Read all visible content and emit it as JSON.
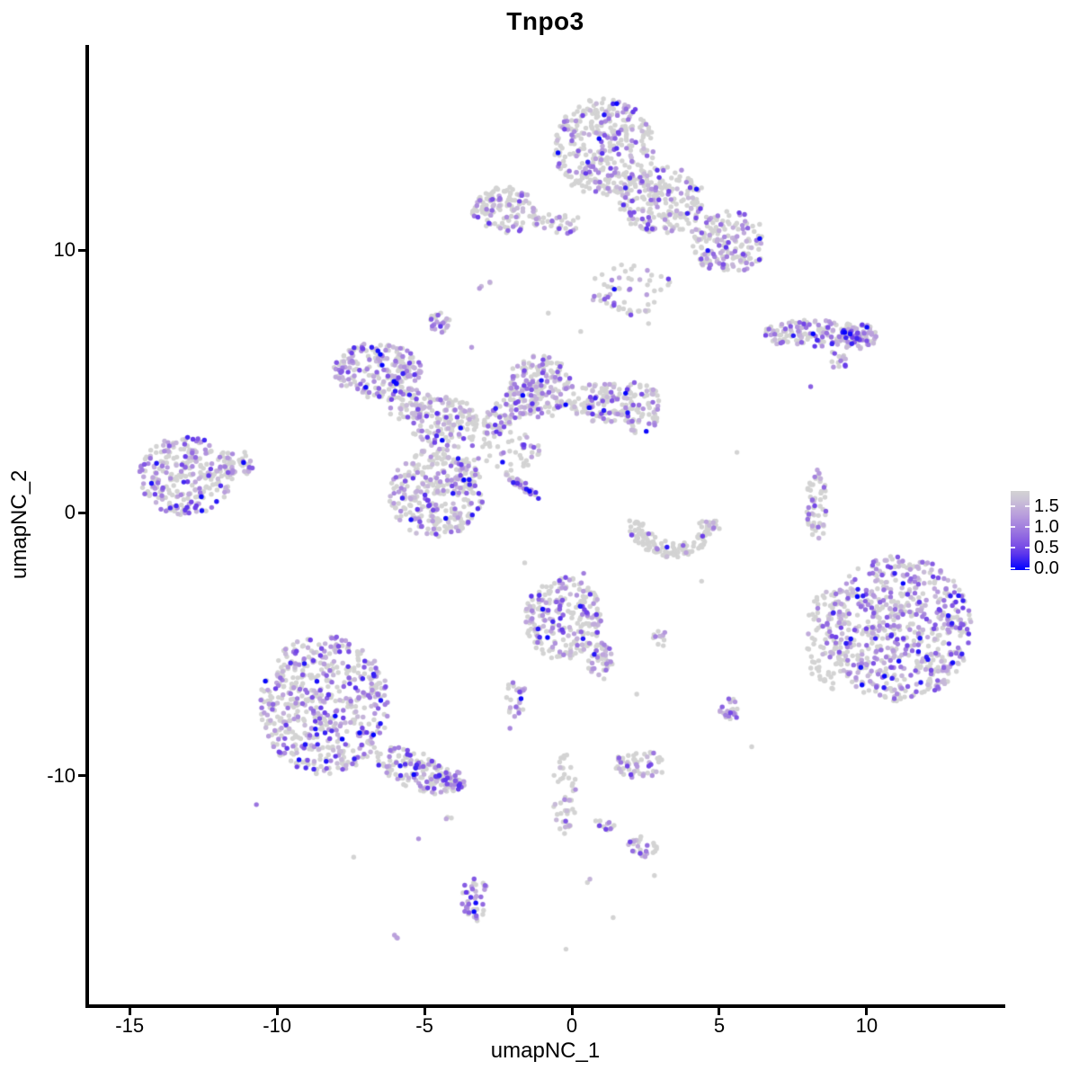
{
  "title": "Tnpo3",
  "axes": {
    "x": {
      "label": "umapNC_1",
      "ticks": [
        -15,
        -10,
        -5,
        0,
        5,
        10
      ],
      "range": [
        -16.5,
        14.7
      ]
    },
    "y": {
      "label": "umapNC_2",
      "ticks": [
        -10,
        0,
        10
      ],
      "range": [
        -18.7,
        17.8
      ]
    }
  },
  "legend": {
    "ticks": [
      0.0,
      0.5,
      1.0,
      1.5
    ],
    "range": [
      -0.05,
      1.87
    ],
    "low_color": "#D3D3D3",
    "high_color": "#0000FF"
  },
  "chart_data": {
    "type": "scatter",
    "title": "Tnpo3",
    "xlabel": "umapNC_1",
    "ylabel": "umapNC_2",
    "xlim": [
      -16.5,
      14.7
    ],
    "ylim": [
      -18.7,
      17.8
    ],
    "grid": false,
    "legend_position": "right",
    "point_radius_px": 2.7,
    "color_scale": {
      "type": "gradient",
      "low": "#D3D3D3",
      "high": "#0000FF",
      "stops": [
        "#D3D3D3",
        "#BDA4DC",
        "#9A74DF",
        "#6F41E8",
        "#0000FF"
      ],
      "value_range": [
        0.0,
        1.87
      ],
      "legend_ticks": [
        0.0,
        0.5,
        1.0,
        1.5
      ]
    },
    "clusters": [
      {
        "name": "top-main-upper",
        "x": 1.1,
        "y": 13.9,
        "rx": 1.7,
        "ry": 1.9,
        "n": 340,
        "frac_expressing": 0.35
      },
      {
        "name": "top-main-mid",
        "x": 3.0,
        "y": 11.9,
        "rx": 1.5,
        "ry": 1.3,
        "n": 220,
        "frac_expressing": 0.32
      },
      {
        "name": "top-main-lower-right",
        "x": 5.3,
        "y": 10.3,
        "rx": 1.3,
        "ry": 1.2,
        "n": 170,
        "frac_expressing": 0.38
      },
      {
        "name": "top-connector",
        "x": 2.0,
        "y": 8.5,
        "rx": 1.4,
        "ry": 1.0,
        "n": 60,
        "frac_expressing": 0.3
      },
      {
        "name": "top-left-small",
        "x": -2.3,
        "y": 11.5,
        "rx": 1.1,
        "ry": 0.9,
        "n": 120,
        "frac_expressing": 0.35
      },
      {
        "name": "top-left-band",
        "x": -0.5,
        "y": 11.0,
        "rx": 0.9,
        "ry": 0.4,
        "n": 35,
        "frac_expressing": 0.3
      },
      {
        "name": "tiny-pair-top",
        "x": -2.9,
        "y": 8.6,
        "rx": 0.3,
        "ry": 0.2,
        "n": 4,
        "frac_expressing": 0.5
      },
      {
        "name": "right-wing",
        "x": 8.2,
        "y": 6.8,
        "rx": 1.7,
        "ry": 0.55,
        "n": 130,
        "frac_expressing": 0.45
      },
      {
        "name": "right-wing-dense",
        "x": 9.7,
        "y": 6.7,
        "rx": 0.7,
        "ry": 0.5,
        "n": 70,
        "frac_expressing": 0.72
      },
      {
        "name": "right-wing-streak",
        "x": 9.0,
        "y": 5.8,
        "rx": 0.4,
        "ry": 0.3,
        "n": 14,
        "frac_expressing": 0.5,
        "rot": -40
      },
      {
        "name": "tiny-blob-mid-top",
        "x": -4.5,
        "y": 7.3,
        "rx": 0.35,
        "ry": 0.45,
        "n": 26,
        "frac_expressing": 0.6
      },
      {
        "name": "mid-left",
        "x": -6.6,
        "y": 5.4,
        "rx": 1.5,
        "ry": 1.1,
        "n": 210,
        "frac_expressing": 0.5
      },
      {
        "name": "mid-left-tail",
        "x": -5.5,
        "y": 4.1,
        "rx": 0.8,
        "ry": 0.6,
        "n": 60,
        "frac_expressing": 0.45
      },
      {
        "name": "central-upper",
        "x": -4.3,
        "y": 3.4,
        "rx": 1.2,
        "ry": 1.0,
        "n": 140,
        "frac_expressing": 0.4
      },
      {
        "name": "central-main",
        "x": -4.6,
        "y": 0.75,
        "rx": 1.6,
        "ry": 1.7,
        "n": 330,
        "frac_expressing": 0.38
      },
      {
        "name": "central-arm",
        "x": -2.0,
        "y": 4.0,
        "rx": 1.4,
        "ry": 0.5,
        "n": 90,
        "frac_expressing": 0.4,
        "rot": 40
      },
      {
        "name": "central-right",
        "x": -1.1,
        "y": 4.8,
        "rx": 1.2,
        "ry": 1.2,
        "n": 170,
        "frac_expressing": 0.42
      },
      {
        "name": "central-right-arm",
        "x": 1.1,
        "y": 4.2,
        "rx": 1.2,
        "ry": 0.75,
        "n": 110,
        "frac_expressing": 0.4
      },
      {
        "name": "central-right-lobe",
        "x": 2.3,
        "y": 4.0,
        "rx": 0.7,
        "ry": 1.0,
        "n": 80,
        "frac_expressing": 0.45
      },
      {
        "name": "central-sparse",
        "x": -2.3,
        "y": 2.4,
        "rx": 1.2,
        "ry": 0.8,
        "n": 50,
        "frac_expressing": 0.25
      },
      {
        "name": "diagonal-streak",
        "x": -1.7,
        "y": 1.05,
        "rx": 0.8,
        "ry": 0.15,
        "n": 40,
        "frac_expressing": 0.65,
        "rot": -40
      },
      {
        "name": "far-left",
        "x": -13.1,
        "y": 1.4,
        "rx": 1.6,
        "ry": 1.5,
        "n": 260,
        "frac_expressing": 0.5
      },
      {
        "name": "far-left-tail",
        "x": -11.4,
        "y": 1.9,
        "rx": 0.7,
        "ry": 0.5,
        "n": 40,
        "frac_expressing": 0.4
      },
      {
        "name": "mid-crescent",
        "x": 3.4,
        "y": -0.3,
        "rx": 1.5,
        "ry": 1.4,
        "n": 130,
        "frac_expressing": 0.15,
        "shape": "arc"
      },
      {
        "name": "right-thin-arc",
        "x": 8.3,
        "y": 0.25,
        "rx": 0.35,
        "ry": 1.4,
        "n": 55,
        "frac_expressing": 0.35
      },
      {
        "name": "right-big",
        "x": 11.1,
        "y": -4.4,
        "rx": 2.45,
        "ry": 2.8,
        "n": 650,
        "frac_expressing": 0.55
      },
      {
        "name": "right-big-left-edge",
        "x": 8.7,
        "y": -4.8,
        "rx": 0.75,
        "ry": 2.0,
        "n": 90,
        "frac_expressing": 0.2
      },
      {
        "name": "bottom-left-big",
        "x": -8.4,
        "y": -7.3,
        "rx": 2.2,
        "ry": 2.65,
        "n": 560,
        "frac_expressing": 0.45
      },
      {
        "name": "bottom-left-tail",
        "x": -5.3,
        "y": -9.8,
        "rx": 1.5,
        "ry": 0.7,
        "n": 130,
        "frac_expressing": 0.45,
        "rot": -26
      },
      {
        "name": "bottom-left-tail-end",
        "x": -4.1,
        "y": -10.2,
        "rx": 0.5,
        "ry": 0.4,
        "n": 45,
        "frac_expressing": 0.7
      },
      {
        "name": "tail-pair",
        "x": -4.0,
        "y": -11.6,
        "rx": 0.3,
        "ry": 0.15,
        "n": 3,
        "frac_expressing": 0.4
      },
      {
        "name": "mid-bottom",
        "x": -0.3,
        "y": -4.0,
        "rx": 1.3,
        "ry": 1.6,
        "n": 240,
        "frac_expressing": 0.42
      },
      {
        "name": "mid-bottom-tail",
        "x": 1.0,
        "y": -5.7,
        "rx": 0.45,
        "ry": 0.8,
        "n": 45,
        "frac_expressing": 0.55
      },
      {
        "name": "mid-bottom-chain",
        "x": -1.9,
        "y": -7.1,
        "rx": 0.4,
        "ry": 0.8,
        "n": 25,
        "frac_expressing": 0.45
      },
      {
        "name": "tiny-mid",
        "x": 3.0,
        "y": -4.8,
        "rx": 0.35,
        "ry": 0.3,
        "n": 12,
        "frac_expressing": 0.3
      },
      {
        "name": "small-purple",
        "x": 5.3,
        "y": -7.5,
        "rx": 0.35,
        "ry": 0.5,
        "n": 22,
        "frac_expressing": 0.65
      },
      {
        "name": "small-lower-1",
        "x": 2.3,
        "y": -9.6,
        "rx": 0.9,
        "ry": 0.55,
        "n": 55,
        "frac_expressing": 0.4
      },
      {
        "name": "small-lower-2",
        "x": 2.4,
        "y": -12.7,
        "rx": 0.5,
        "ry": 0.4,
        "n": 28,
        "frac_expressing": 0.4
      },
      {
        "name": "vertical-chain",
        "x": -0.25,
        "y": -10.7,
        "rx": 0.4,
        "ry": 1.55,
        "n": 48,
        "frac_expressing": 0.3
      },
      {
        "name": "chain-streak",
        "x": 1.0,
        "y": -11.9,
        "rx": 0.45,
        "ry": 0.2,
        "n": 12,
        "frac_expressing": 0.4
      },
      {
        "name": "bottom-center",
        "x": -3.3,
        "y": -14.6,
        "rx": 0.45,
        "ry": 0.95,
        "n": 42,
        "frac_expressing": 0.65
      },
      {
        "name": "bottom-streak-dot",
        "x": -6.0,
        "y": -16.1,
        "rx": 0.15,
        "ry": 0.1,
        "n": 3,
        "frac_expressing": 0.9
      },
      {
        "name": "lone-dark-dot",
        "x": 0.6,
        "y": -14.0,
        "rx": 0.1,
        "ry": 0.1,
        "n": 2,
        "frac_expressing": 0.9
      }
    ],
    "singles": [
      [
        8.1,
        4.8,
        0.6
      ],
      [
        -0.8,
        7.6,
        0
      ],
      [
        2.6,
        7.2,
        0
      ],
      [
        -3.4,
        6.3,
        0.3
      ],
      [
        5.6,
        2.3,
        0
      ],
      [
        3.6,
        -1.5,
        0
      ],
      [
        4.4,
        -2.6,
        0
      ],
      [
        -1.6,
        -1.9,
        0
      ],
      [
        0.4,
        -2.3,
        0.45
      ],
      [
        6.1,
        -8.9,
        0
      ],
      [
        -10.7,
        -11.1,
        0.5
      ],
      [
        -5.2,
        -12.4,
        0.35
      ],
      [
        1.4,
        -15.4,
        0
      ],
      [
        2.8,
        -13.8,
        0
      ],
      [
        -0.2,
        -16.6,
        0
      ],
      [
        -7.4,
        -13.1,
        0
      ],
      [
        -2.1,
        -8.2,
        0.4
      ],
      [
        2.2,
        -6.9,
        0
      ],
      [
        5.0,
        -0.6,
        0
      ],
      [
        0.3,
        6.9,
        0
      ]
    ]
  }
}
